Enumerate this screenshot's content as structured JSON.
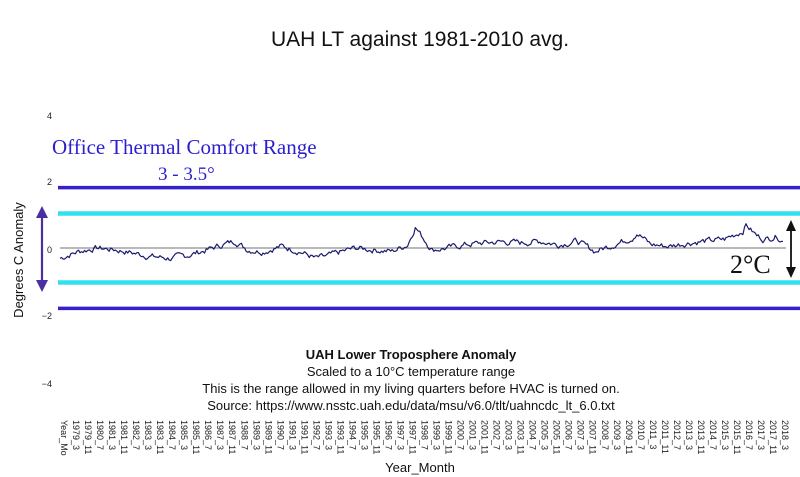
{
  "chart_data": {
    "type": "line",
    "title": "UAH LT against 1981-2010 avg.",
    "ylabel": "Degrees C Anomaly",
    "xlabel": "Year_Month",
    "ylim": [
      -4,
      4
    ],
    "yticks": [
      4,
      2,
      0,
      -2,
      -4
    ],
    "xticks": [
      "Year_Mo",
      "1979_3",
      "1979_11",
      "1980_7",
      "1981_3",
      "1981_11",
      "1982_7",
      "1983_3",
      "1983_11",
      "1984_7",
      "1985_3",
      "1985_11",
      "1986_7",
      "1987_3",
      "1987_11",
      "1988_7",
      "1989_3",
      "1989_11",
      "1990_7",
      "1991_3",
      "1991_11",
      "1992_7",
      "1993_3",
      "1993_11",
      "1994_7",
      "1995_3",
      "1995_11",
      "1996_7",
      "1997_3",
      "1997_11",
      "1998_7",
      "1999_3",
      "1999_11",
      "2000_7",
      "2001_3",
      "2001_11",
      "2002_7",
      "2003_3",
      "2003_11",
      "2004_7",
      "2005_3",
      "2005_11",
      "2006_7",
      "2007_3",
      "2007_11",
      "2008_7",
      "2009_3",
      "2009_11",
      "2010_7",
      "2011_3",
      "2011_11",
      "2012_7",
      "2013_3",
      "2013_11",
      "2014_7",
      "2015_3",
      "2015_11",
      "2016_7",
      "2017_3",
      "2017_11",
      "2018_3"
    ],
    "series": [
      {
        "name": "UAH Lower Troposphere Anomaly",
        "color": "#1a1a6e",
        "anchors_x": [
          "1979_1",
          "1980_1",
          "1981_1",
          "1982_1",
          "1983_1",
          "1984_1",
          "1985_1",
          "1986_1",
          "1987_1",
          "1987_11",
          "1988_7",
          "1989_3",
          "1990_1",
          "1991_1",
          "1992_1",
          "1992_11",
          "1993_6",
          "1994_1",
          "1995_1",
          "1996_1",
          "1997_1",
          "1997_11",
          "1998_4",
          "1998_9",
          "1999_3",
          "2000_1",
          "2001_1",
          "2002_1",
          "2003_1",
          "2004_1",
          "2005_1",
          "2006_1",
          "2007_1",
          "2008_1",
          "2009_1",
          "2010_1",
          "2010_4",
          "2011_1",
          "2012_1",
          "2013_1",
          "2014_1",
          "2015_1",
          "2016_1",
          "2016_3",
          "2016_10",
          "2017_3",
          "2017_11",
          "2018_3"
        ],
        "anchors_y": [
          -0.3,
          -0.1,
          0.0,
          -0.05,
          -0.15,
          -0.25,
          -0.3,
          -0.2,
          -0.05,
          0.1,
          0.2,
          -0.05,
          -0.1,
          0.05,
          -0.1,
          -0.3,
          -0.25,
          -0.15,
          0.0,
          -0.05,
          -0.1,
          0.1,
          0.62,
          0.3,
          -0.05,
          0.0,
          0.1,
          0.15,
          0.18,
          0.15,
          0.2,
          0.1,
          0.2,
          -0.1,
          0.1,
          0.3,
          0.45,
          0.1,
          0.05,
          0.15,
          0.2,
          0.25,
          0.5,
          0.68,
          0.35,
          0.25,
          0.35,
          0.2
        ],
        "noise_amplitude": 0.07
      }
    ],
    "reference_lines": [
      {
        "name": "Office Thermal Comfort Range outer",
        "values": [
          1.75,
          -1.75
        ],
        "color": "#3322cc"
      },
      {
        "name": "2°C range",
        "values": [
          1.0,
          -1.0
        ],
        "color": "#33e0f0"
      },
      {
        "name": "zero",
        "values": [
          0
        ],
        "color": "#444444"
      }
    ],
    "annotations": {
      "comfort_title": "Office Thermal Comfort Range",
      "comfort_range": "3 - 3.5°",
      "two_c": "2°C",
      "note_title": "UAH Lower Troposphere Anomaly",
      "note_line1": "Scaled to a 10°C temperature range",
      "note_line2": "This is the range allowed in my living quarters before HVAC is turned on.",
      "note_line3": "Source:  https://www.nsstc.uah.edu/data/msu/v6.0/tlt/uahncdc_lt_6.0.txt"
    },
    "colors": {
      "outer_band": "#3322cc",
      "inner_band": "#33e0f0",
      "line": "#1a1a6e",
      "comfort_text": "#2b1fd0",
      "arrow_left": "#4a2fa0"
    }
  }
}
